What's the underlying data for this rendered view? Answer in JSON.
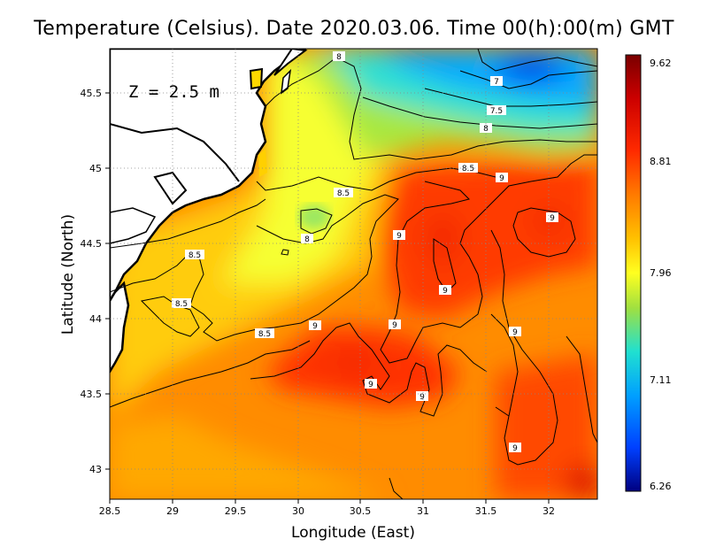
{
  "title": "Temperature (Celsius). Date 2020.03.06. Time 00(h):00(m)  GMT",
  "depth_label": "Z = 2.5 m",
  "x_axis": {
    "label": "Longitude (East)",
    "ticks": [
      "28.5",
      "29",
      "29.5",
      "30",
      "30.5",
      "31",
      "31.5",
      "32"
    ]
  },
  "y_axis": {
    "label": "Latitude (North)",
    "ticks": [
      "43",
      "43.5",
      "44",
      "44.5",
      "45",
      "45.5"
    ]
  },
  "colorbar": {
    "ticks": [
      "9.62",
      "8.81",
      "7.96",
      "7.11",
      "6.26"
    ],
    "colors": [
      "#7a0000",
      "#cc0000",
      "#ff2a00",
      "#ff7a00",
      "#ffc000",
      "#ffff20",
      "#a0e040",
      "#20e0d0",
      "#00a0ff",
      "#0040ff",
      "#000080"
    ]
  },
  "contour_labels": [
    "8",
    "7",
    "7.5",
    "8",
    "8.5",
    "9",
    "8.5",
    "9",
    "8",
    "9",
    "8.5",
    "9",
    "8.5",
    "9",
    "9",
    "8.5",
    "9",
    "9",
    "9",
    "9"
  ],
  "map_extent": {
    "lon": [
      28.5,
      32.4
    ],
    "lat": [
      42.8,
      45.8
    ]
  }
}
